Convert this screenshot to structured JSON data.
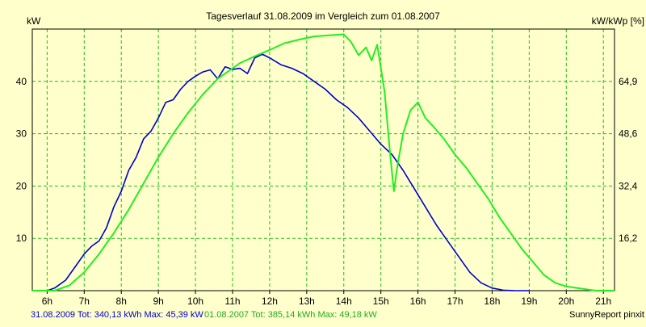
{
  "chart_data": {
    "type": "line",
    "title": "Tagesverlauf 31.08.2009 im Vergleich zum 01.08.2007",
    "ylabel_left": "kW",
    "ylabel_right": "kW/kWp [%]",
    "xlim": [
      5.6,
      21.3
    ],
    "ylim": [
      0,
      50
    ],
    "x_ticks": [
      6,
      7,
      8,
      9,
      10,
      11,
      12,
      13,
      14,
      15,
      16,
      17,
      18,
      19,
      20,
      21
    ],
    "x_tick_labels": [
      "6h",
      "7h",
      "8h",
      "9h",
      "10h",
      "11h",
      "12h",
      "13h",
      "14h",
      "15h",
      "16h",
      "17h",
      "18h",
      "19h",
      "20h",
      "21h"
    ],
    "y_left_ticks": [
      10,
      20,
      30,
      40
    ],
    "y_left_tick_labels": [
      "10",
      "20",
      "30",
      "40"
    ],
    "y_right_ticks": [
      10,
      20,
      30,
      40
    ],
    "y_right_tick_labels": [
      "16,2",
      "32,4",
      "48,6",
      "64,9"
    ],
    "grid": true,
    "colors": {
      "background": "#ffffcc",
      "grid": "#22bb22",
      "series_2009": "#0000cc",
      "series_2007": "#22ee22"
    },
    "series": [
      {
        "name": "31.08.2009",
        "color": "#0000cc",
        "points": [
          [
            5.6,
            0
          ],
          [
            6.0,
            0
          ],
          [
            6.2,
            0.5
          ],
          [
            6.5,
            2
          ],
          [
            6.8,
            5
          ],
          [
            7.0,
            7
          ],
          [
            7.2,
            8.5
          ],
          [
            7.4,
            9.5
          ],
          [
            7.6,
            12
          ],
          [
            7.8,
            16
          ],
          [
            8.0,
            19
          ],
          [
            8.2,
            23
          ],
          [
            8.4,
            25.5
          ],
          [
            8.6,
            29
          ],
          [
            8.8,
            30.5
          ],
          [
            9.0,
            33
          ],
          [
            9.2,
            36
          ],
          [
            9.4,
            36.5
          ],
          [
            9.6,
            38.5
          ],
          [
            9.8,
            40
          ],
          [
            10.0,
            41
          ],
          [
            10.2,
            41.8
          ],
          [
            10.4,
            42.2
          ],
          [
            10.6,
            40.5
          ],
          [
            10.8,
            42.8
          ],
          [
            11.0,
            42.3
          ],
          [
            11.2,
            42.5
          ],
          [
            11.4,
            41.5
          ],
          [
            11.6,
            44.5
          ],
          [
            11.8,
            45.2
          ],
          [
            12.0,
            44.5
          ],
          [
            12.3,
            43.2
          ],
          [
            12.6,
            42.5
          ],
          [
            12.9,
            41.5
          ],
          [
            13.2,
            40
          ],
          [
            13.5,
            38.5
          ],
          [
            13.8,
            36.5
          ],
          [
            14.1,
            35
          ],
          [
            14.4,
            33
          ],
          [
            14.7,
            30.5
          ],
          [
            15.0,
            28
          ],
          [
            15.3,
            26
          ],
          [
            15.6,
            23
          ],
          [
            15.9,
            19.5
          ],
          [
            16.2,
            16
          ],
          [
            16.5,
            12.5
          ],
          [
            16.8,
            9.5
          ],
          [
            17.1,
            6.5
          ],
          [
            17.4,
            3.5
          ],
          [
            17.7,
            1.5
          ],
          [
            18.0,
            0.5
          ],
          [
            18.3,
            0.1
          ],
          [
            18.6,
            0
          ],
          [
            19.0,
            0
          ]
        ]
      },
      {
        "name": "01.08.2007",
        "color": "#22ee22",
        "points": [
          [
            5.6,
            0
          ],
          [
            6.2,
            0
          ],
          [
            6.6,
            1
          ],
          [
            7.0,
            3.5
          ],
          [
            7.4,
            7
          ],
          [
            7.8,
            11
          ],
          [
            8.2,
            15.5
          ],
          [
            8.6,
            20.5
          ],
          [
            9.0,
            25.5
          ],
          [
            9.4,
            30
          ],
          [
            9.8,
            34
          ],
          [
            10.2,
            37.5
          ],
          [
            10.6,
            40.5
          ],
          [
            10.9,
            42
          ],
          [
            11.2,
            43.5
          ],
          [
            11.6,
            44.8
          ],
          [
            12.0,
            46
          ],
          [
            12.4,
            47.3
          ],
          [
            12.8,
            48
          ],
          [
            13.2,
            48.6
          ],
          [
            13.6,
            48.8
          ],
          [
            14.0,
            49
          ],
          [
            14.2,
            47.5
          ],
          [
            14.4,
            45
          ],
          [
            14.6,
            46.5
          ],
          [
            14.75,
            44
          ],
          [
            14.9,
            47
          ],
          [
            15.1,
            38
          ],
          [
            15.25,
            26
          ],
          [
            15.35,
            19
          ],
          [
            15.45,
            24
          ],
          [
            15.6,
            30
          ],
          [
            15.8,
            34.5
          ],
          [
            16.0,
            36
          ],
          [
            16.2,
            33
          ],
          [
            16.4,
            31.5
          ],
          [
            16.7,
            29
          ],
          [
            17.0,
            26
          ],
          [
            17.3,
            23.5
          ],
          [
            17.6,
            20.5
          ],
          [
            17.9,
            17.5
          ],
          [
            18.2,
            14
          ],
          [
            18.5,
            11
          ],
          [
            18.8,
            8
          ],
          [
            19.1,
            5.5
          ],
          [
            19.4,
            3
          ],
          [
            19.7,
            1.5
          ],
          [
            20.0,
            0.8
          ],
          [
            20.3,
            0.5
          ],
          [
            20.6,
            0.2
          ],
          [
            20.8,
            0
          ],
          [
            21.3,
            0
          ]
        ]
      }
    ]
  },
  "footer": {
    "legend_2009": "31.08.2009 Tot: 340,13 kWh Max: 45,39 kW",
    "legend_2007": "01.08.2007 Tot: 385,14 kWh Max: 49,18 kW",
    "credit": "SunnyReport pinxit"
  }
}
